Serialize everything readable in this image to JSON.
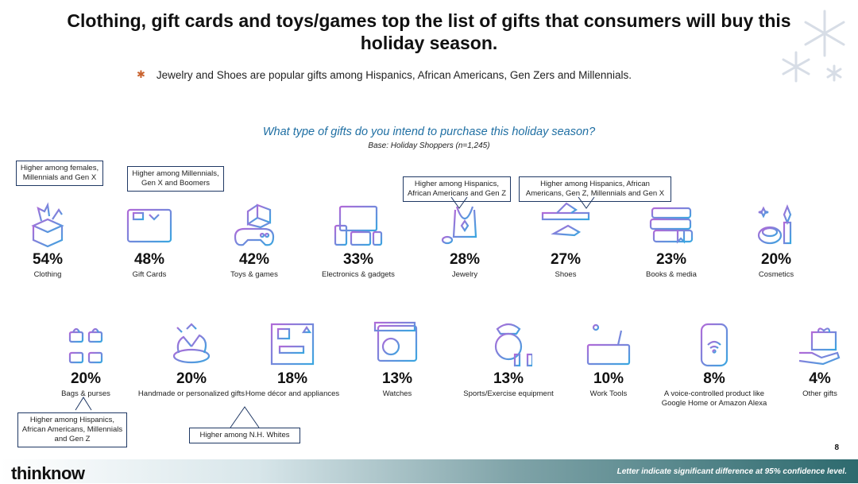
{
  "title": "Clothing, gift cards and toys/games top the list of gifts that consumers will buy this holiday season.",
  "bullet": "Jewelry and Shoes are popular gifts among Hispanics, African Americans, Gen Zers and Millennials.",
  "bullet_icon": "gingerbread-man-icon",
  "question": "What type of gifts do you intend to purchase this holiday season?",
  "base": "Base: Holiday Shoppers (n=1,245)",
  "callouts": {
    "clothing": "Higher among females, Millennials and Gen X",
    "gift_cards": "Higher among Millennials, Gen X and Boomers",
    "jewelry": "Higher among Hispanics, African Americans and Gen Z",
    "shoes": "Higher among Hispanics, African Americans, Gen Z, Millennials and Gen X",
    "bags": "Higher among Hispanics, African Americans, Millennials  and Gen Z",
    "home_decor": "Higher among N.H. Whites"
  },
  "chart_data": {
    "type": "table",
    "categories": [
      "Clothing",
      "Gift Cards",
      "Toys & games",
      "Electronics & gadgets",
      "Jewelry",
      "Shoes",
      "Books & media",
      "Cosmetics",
      "Bags & purses",
      "Handmade or personalized gifts",
      "Home décor and appliances",
      "Watches",
      "Sports/Exercise equipment",
      "Work Tools",
      "A voice-controlled product like Google Home or Amazon Alexa",
      "Other gifts"
    ],
    "values": [
      54,
      48,
      42,
      33,
      28,
      27,
      23,
      20,
      20,
      20,
      18,
      13,
      13,
      10,
      8,
      4
    ],
    "labels": [
      "54%",
      "48%",
      "42%",
      "33%",
      "28%",
      "27%",
      "23%",
      "20%",
      "20%",
      "20%",
      "18%",
      "13%",
      "13%",
      "10%",
      "8%",
      "4%"
    ],
    "unit": "%"
  },
  "page_number": "8",
  "footer_logo": "thinknow",
  "footer_note": "Letter indicate significant difference at 95% confidence level.",
  "colors": {
    "icon_gradient_start": "#b06ad8",
    "icon_gradient_end": "#3aa6e0",
    "question": "#1f6fa3",
    "callout_border": "#1f3864"
  }
}
